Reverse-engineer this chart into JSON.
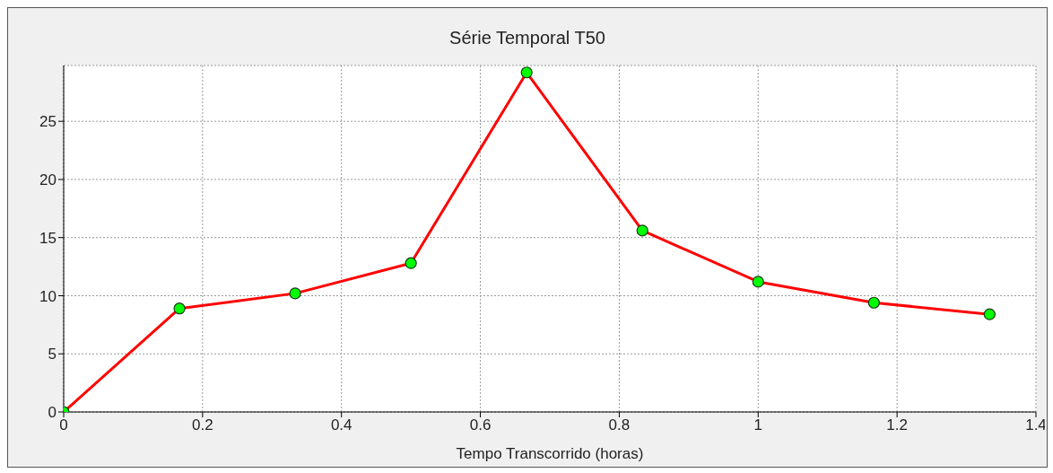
{
  "chart_data": {
    "type": "line",
    "title": "Série Temporal T50",
    "xlabel": "Tempo Transcorrido (horas)",
    "x": [
      0,
      0.1667,
      0.3333,
      0.5,
      0.6667,
      0.8333,
      1.0,
      1.1667,
      1.3333
    ],
    "series": [
      {
        "color": "#ff0000",
        "values": [
          0,
          8.9,
          10.2,
          12.8,
          29.2,
          15.6,
          11.2,
          9.4,
          8.4
        ]
      }
    ],
    "xlim": [
      0,
      1.4
    ],
    "xticks": [
      0,
      0.2,
      0.4,
      0.6,
      0.8,
      1,
      1.2,
      1.4
    ],
    "ylim": [
      0,
      29.8
    ],
    "yticks": [
      0,
      5,
      10,
      15,
      20,
      25
    ],
    "grid": true,
    "marker": "circle",
    "line_style": "solid"
  }
}
